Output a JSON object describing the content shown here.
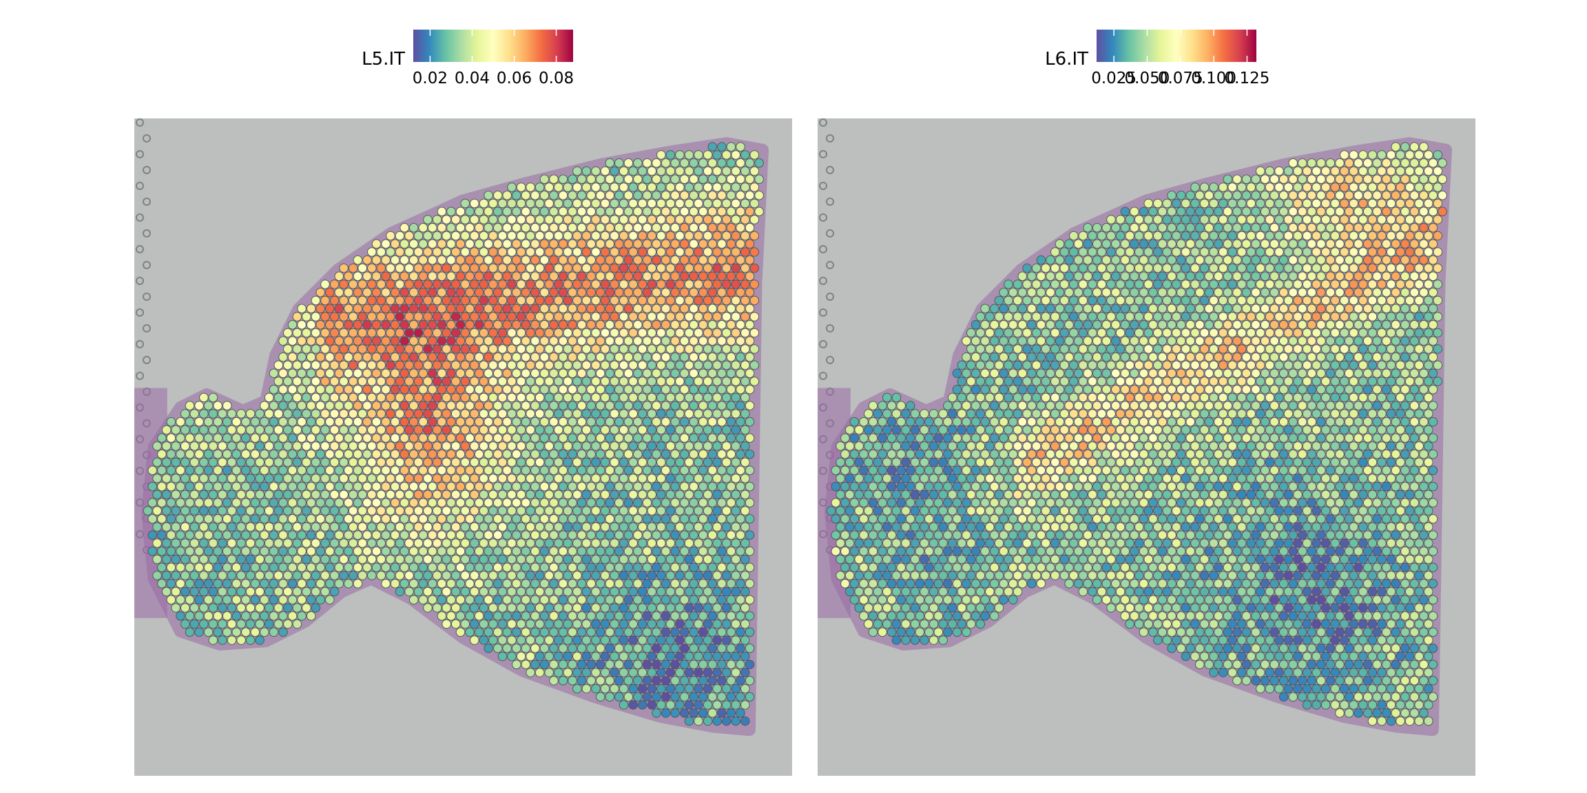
{
  "chart_data": [
    {
      "type": "heatmap",
      "subtype": "spatial-spot-plot",
      "title": "",
      "legend_title": "L5.IT",
      "legend_placement": "top",
      "color_scale": "Spectral (reversed)",
      "color_stops": [
        "#5E4FA2",
        "#3288BD",
        "#66C2A5",
        "#ABDDA4",
        "#E6F598",
        "#FFFFBF",
        "#FEE08B",
        "#FDAE61",
        "#F46D43",
        "#D53E4F",
        "#9E0142"
      ],
      "value_range": [
        0.012,
        0.088
      ],
      "ticks": [
        0.02,
        0.04,
        0.06,
        0.08
      ],
      "tick_labels": [
        "0.02",
        "0.04",
        "0.06",
        "0.08"
      ],
      "background": "tissue H&E image",
      "pattern": "higher values in upper cortex band and central-left region; lower at bottom-right"
    },
    {
      "type": "heatmap",
      "subtype": "spatial-spot-plot",
      "title": "",
      "legend_title": "L6.IT",
      "legend_placement": "top",
      "color_scale": "Spectral (reversed)",
      "color_stops": [
        "#5E4FA2",
        "#3288BD",
        "#66C2A5",
        "#ABDDA4",
        "#E6F598",
        "#FFFFBF",
        "#FEE08B",
        "#FDAE61",
        "#F46D43",
        "#D53E4F",
        "#9E0142"
      ],
      "value_range": [
        0.012,
        0.132
      ],
      "ticks": [
        0.025,
        0.05,
        0.075,
        0.1,
        0.125
      ],
      "tick_labels": [
        "0.025",
        "0.050",
        "0.075",
        "0.100",
        "0.125"
      ],
      "background": "tissue H&E image",
      "pattern": "higher values along a diagonal band from upper-right to center-bottom; lower in left and bottom-right regions"
    }
  ],
  "colors": {
    "tissue_background": "#BCBFBE",
    "tissue_stain": "#9A6AA6",
    "spot_outline": "#505A5A"
  }
}
